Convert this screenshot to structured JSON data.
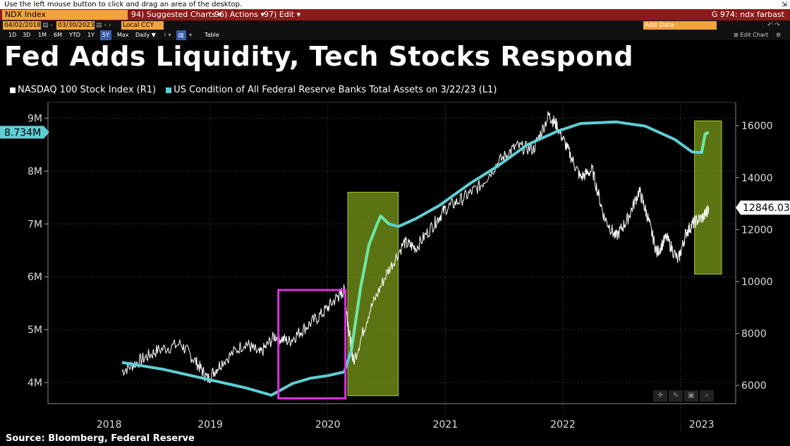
{
  "status_hint": "Use the left mouse button to click and drag an area of the desktop.",
  "menu": {
    "ticker": "NDX Index",
    "suggested": "94) Suggested Charts ▾",
    "actions": "96) Actions ▾",
    "edit": "97) Edit ▾",
    "right": "G 974: ndx farbast"
  },
  "toolbar": {
    "start_date": "04/02/2018",
    "end_date": "03/30/2023",
    "currency": "Local CCY",
    "ranges": [
      "1D",
      "3D",
      "1M",
      "6M",
      "YTD",
      "1Y",
      "5Y",
      "Max"
    ],
    "selected_range": "5Y",
    "period": "Daily ▼",
    "table": "Table",
    "add_data": "Add Data",
    "edit_chart": "Edit Chart"
  },
  "source": "Source: Bloomberg, Federal Reserve",
  "colors": {
    "nasdaq": "#ffffff",
    "fed": "#5ecfd4",
    "fed_surge": "#6ee8a0",
    "highlight_box": "#7a9a1a",
    "magenta_box": "#e02ee0"
  },
  "chart_data": {
    "type": "line",
    "title": "Fed Adds Liquidity, Tech Stocks Respond",
    "left_axis": {
      "ticks": [
        "4M",
        "5M",
        "6M",
        "7M",
        "8M",
        "9M"
      ],
      "ylim": [
        3.6,
        9.3
      ]
    },
    "right_axis": {
      "ticks": [
        "6000",
        "8000",
        "10000",
        "12000",
        "14000",
        "16000"
      ],
      "ylim": [
        5300,
        16900
      ]
    },
    "x_labels": [
      "2018",
      "2019",
      "2020",
      "2021",
      "2022",
      "2023"
    ],
    "series": [
      {
        "name": "NASDAQ 100 Stock Index  (R1)",
        "axis": "right",
        "last_value": "12846.03",
        "points": [
          [
            2018.25,
            6550
          ],
          [
            2018.4,
            6950
          ],
          [
            2018.55,
            7350
          ],
          [
            2018.75,
            7600
          ],
          [
            2018.88,
            6900
          ],
          [
            2018.98,
            6250
          ],
          [
            2019.1,
            6900
          ],
          [
            2019.3,
            7650
          ],
          [
            2019.42,
            7200
          ],
          [
            2019.55,
            7900
          ],
          [
            2019.67,
            7700
          ],
          [
            2019.8,
            8200
          ],
          [
            2019.95,
            8750
          ],
          [
            2020.08,
            9400
          ],
          [
            2020.14,
            9650
          ],
          [
            2020.18,
            8100
          ],
          [
            2020.22,
            6900
          ],
          [
            2020.35,
            8800
          ],
          [
            2020.5,
            10300
          ],
          [
            2020.65,
            11500
          ],
          [
            2020.75,
            11300
          ],
          [
            2020.9,
            12200
          ],
          [
            2021.0,
            12800
          ],
          [
            2021.15,
            13200
          ],
          [
            2021.3,
            13700
          ],
          [
            2021.45,
            14600
          ],
          [
            2021.6,
            15200
          ],
          [
            2021.75,
            15100
          ],
          [
            2021.88,
            16400
          ],
          [
            2021.95,
            16000
          ],
          [
            2022.05,
            15000
          ],
          [
            2022.15,
            14000
          ],
          [
            2022.25,
            14300
          ],
          [
            2022.35,
            12500
          ],
          [
            2022.45,
            11700
          ],
          [
            2022.55,
            12400
          ],
          [
            2022.65,
            13500
          ],
          [
            2022.72,
            12500
          ],
          [
            2022.8,
            11100
          ],
          [
            2022.88,
            11700
          ],
          [
            2022.98,
            10800
          ],
          [
            2023.05,
            11900
          ],
          [
            2023.12,
            12300
          ],
          [
            2023.2,
            12500
          ],
          [
            2023.24,
            12846
          ]
        ]
      },
      {
        "name": "US Condition of All Federal Reserve Banks Total Assets  on 3/22/23  (L1)",
        "axis": "left",
        "last_value": "8.734M",
        "points": [
          [
            2018.25,
            4.38
          ],
          [
            2018.6,
            4.25
          ],
          [
            2019.0,
            4.05
          ],
          [
            2019.3,
            3.9
          ],
          [
            2019.52,
            3.76
          ],
          [
            2019.7,
            3.98
          ],
          [
            2019.85,
            4.08
          ],
          [
            2020.0,
            4.13
          ],
          [
            2020.14,
            4.2
          ],
          [
            2020.2,
            4.6
          ],
          [
            2020.28,
            5.8
          ],
          [
            2020.35,
            6.6
          ],
          [
            2020.42,
            7.0
          ],
          [
            2020.45,
            7.15
          ],
          [
            2020.52,
            7.0
          ],
          [
            2020.6,
            6.95
          ],
          [
            2020.75,
            7.1
          ],
          [
            2020.95,
            7.35
          ],
          [
            2021.2,
            7.75
          ],
          [
            2021.45,
            8.1
          ],
          [
            2021.7,
            8.5
          ],
          [
            2021.95,
            8.75
          ],
          [
            2022.15,
            8.9
          ],
          [
            2022.45,
            8.93
          ],
          [
            2022.7,
            8.85
          ],
          [
            2022.95,
            8.6
          ],
          [
            2023.1,
            8.36
          ],
          [
            2023.18,
            8.35
          ],
          [
            2023.21,
            8.7
          ],
          [
            2023.24,
            8.734
          ]
        ]
      }
    ],
    "annotations": [
      {
        "type": "magenta-box",
        "x_range": [
          2019.58,
          2020.15
        ],
        "left_range": [
          3.7,
          5.75
        ]
      },
      {
        "type": "green-box",
        "x_range": [
          2020.17,
          2020.6
        ],
        "left_range": [
          3.75,
          7.6
        ]
      },
      {
        "type": "green-box",
        "x_range": [
          2023.12,
          2023.35
        ],
        "left_range": [
          6.05,
          8.95
        ]
      }
    ]
  }
}
